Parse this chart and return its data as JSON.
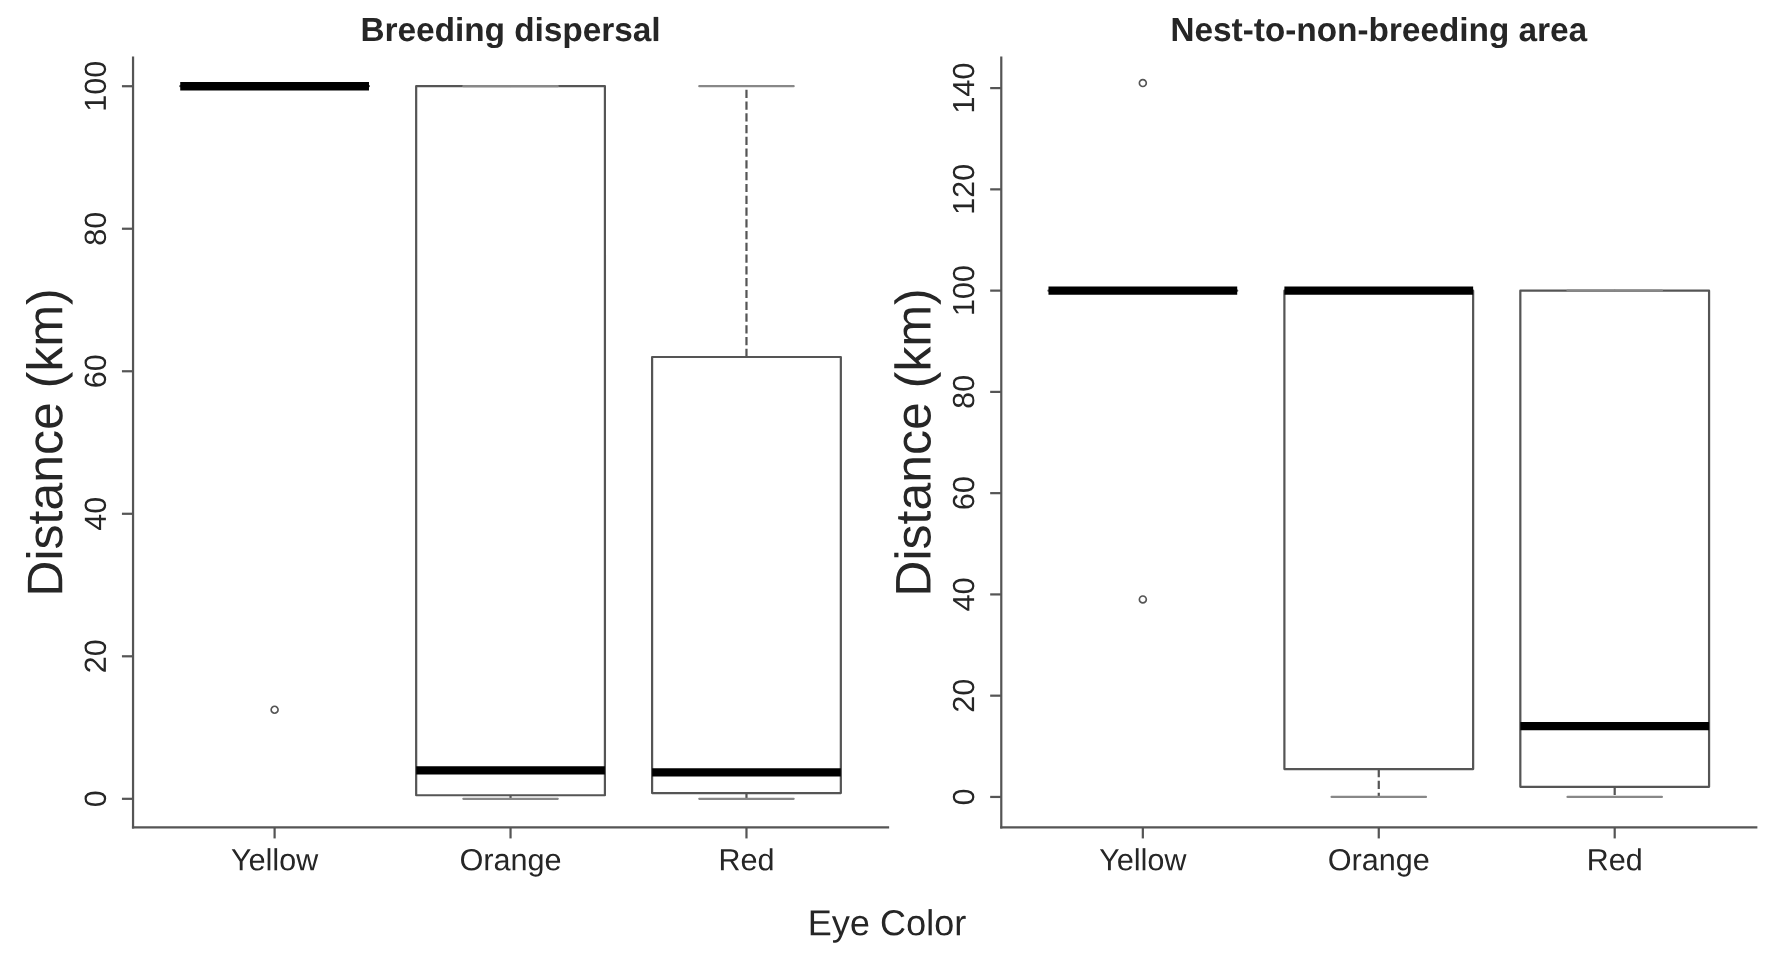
{
  "chart_data": [
    {
      "type": "box",
      "title": "Breeding dispersal",
      "xlabel": "Eye Color",
      "ylabel": "Distance (km)",
      "categories": [
        "Yellow",
        "Orange",
        "Red"
      ],
      "ylim": [
        -4,
        104
      ],
      "yticks": [
        0,
        20,
        40,
        60,
        80,
        100
      ],
      "grid": false,
      "line_style": "dashed",
      "boxes": [
        {
          "low": 100,
          "q1": 100,
          "median": 100,
          "q3": 100,
          "high": 100,
          "outliers": [
            12.5
          ]
        },
        {
          "low": 0,
          "q1": 0.5,
          "median": 4,
          "q3": 100,
          "high": 100
        },
        {
          "low": 0,
          "q1": 0.8,
          "median": 3.7,
          "q3": 62,
          "high": 100
        }
      ]
    },
    {
      "type": "box",
      "title": "Nest-to-non-breeding area",
      "ylabel": "Distance (km)",
      "categories": [
        "Yellow",
        "Orange",
        "Red"
      ],
      "ylim": [
        -6,
        146
      ],
      "yticks": [
        0,
        20,
        40,
        60,
        80,
        100,
        120,
        140
      ],
      "grid": false,
      "line_style": "dashed",
      "boxes": [
        {
          "low": 100,
          "q1": 100,
          "median": 100,
          "q3": 100,
          "high": 100,
          "outliers": [
            141,
            39
          ]
        },
        {
          "low": 0,
          "q1": 5.5,
          "median": 100,
          "q3": 100,
          "high": 100
        },
        {
          "low": 0,
          "q1": 2,
          "median": 14,
          "q3": 100,
          "high": 100
        }
      ]
    }
  ]
}
